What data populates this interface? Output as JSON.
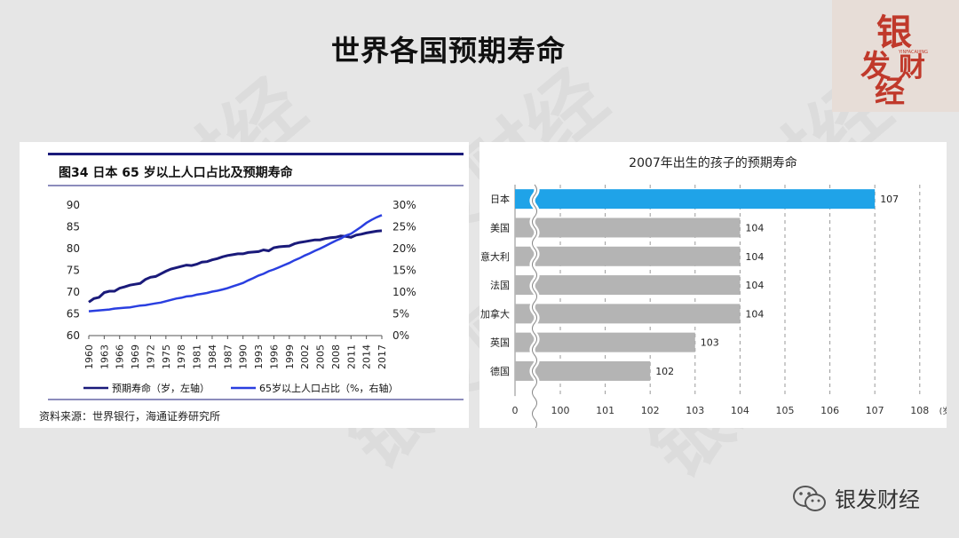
{
  "slide": {
    "title": "世界各国预期寿命"
  },
  "logo": {
    "chars": [
      "银",
      "发",
      "财",
      "经"
    ],
    "pinyin": "YINFACAIJING"
  },
  "watermark": "银发财经",
  "footer": {
    "brand": "银发财经"
  },
  "colors": {
    "dark_navy": "#1a1a7a",
    "bright_blue": "#2a3fe0",
    "highlight_bar": "#1fa3e8",
    "gray_bar": "#b4b4b4",
    "logo_red": "#c0392b"
  },
  "chart_data": [
    {
      "type": "line",
      "title": "图34 日本 65 岁以上人口占比及预期寿命",
      "source": "资料来源：世界银行，海通证券研究所",
      "x": [
        1960,
        1961,
        1962,
        1963,
        1964,
        1965,
        1966,
        1967,
        1968,
        1969,
        1970,
        1971,
        1972,
        1973,
        1974,
        1975,
        1976,
        1977,
        1978,
        1979,
        1980,
        1981,
        1982,
        1983,
        1984,
        1985,
        1986,
        1987,
        1988,
        1989,
        1990,
        1991,
        1992,
        1993,
        1994,
        1995,
        1996,
        1997,
        1998,
        1999,
        2000,
        2001,
        2002,
        2003,
        2004,
        2005,
        2006,
        2007,
        2008,
        2009,
        2010,
        2011,
        2012,
        2013,
        2014,
        2015,
        2016,
        2017
      ],
      "xticks": [
        "1960",
        "1963",
        "1966",
        "1969",
        "1972",
        "1975",
        "1978",
        "1981",
        "1984",
        "1987",
        "1990",
        "1993",
        "1996",
        "1999",
        "2002",
        "2005",
        "2008",
        "2011",
        "2014",
        "2017"
      ],
      "yleft_ticks": [
        "60",
        "65",
        "70",
        "75",
        "80",
        "85",
        "90"
      ],
      "yleft_lim": [
        60,
        90
      ],
      "yright_ticks": [
        "0%",
        "5%",
        "10%",
        "15%",
        "20%",
        "25%",
        "30%"
      ],
      "yright_lim": [
        0,
        30
      ],
      "series": [
        {
          "name": "预期寿命（岁，左轴）",
          "axis": "left",
          "values": [
            67.7,
            68.5,
            68.8,
            69.9,
            70.2,
            70.2,
            70.9,
            71.2,
            71.6,
            71.8,
            72.0,
            72.9,
            73.4,
            73.6,
            74.2,
            74.8,
            75.3,
            75.6,
            75.9,
            76.2,
            76.1,
            76.4,
            76.9,
            77.0,
            77.4,
            77.7,
            78.1,
            78.4,
            78.6,
            78.8,
            78.8,
            79.1,
            79.2,
            79.3,
            79.7,
            79.5,
            80.2,
            80.4,
            80.5,
            80.6,
            81.1,
            81.4,
            81.6,
            81.8,
            82.0,
            82.0,
            82.3,
            82.5,
            82.6,
            82.9,
            82.8,
            82.6,
            83.1,
            83.3,
            83.6,
            83.8,
            84.0,
            84.1
          ]
        },
        {
          "name": "65岁以上人口占比（%，右轴）",
          "axis": "right",
          "values": [
            5.6,
            5.7,
            5.8,
            5.9,
            6.0,
            6.2,
            6.3,
            6.4,
            6.5,
            6.7,
            6.9,
            7.0,
            7.2,
            7.4,
            7.6,
            7.9,
            8.2,
            8.5,
            8.7,
            9.0,
            9.1,
            9.4,
            9.6,
            9.8,
            10.1,
            10.3,
            10.6,
            10.9,
            11.3,
            11.7,
            12.1,
            12.7,
            13.2,
            13.8,
            14.2,
            14.8,
            15.2,
            15.7,
            16.2,
            16.7,
            17.3,
            17.8,
            18.4,
            18.9,
            19.5,
            20.0,
            20.6,
            21.2,
            21.8,
            22.3,
            23.0,
            23.4,
            24.2,
            25.0,
            25.9,
            26.6,
            27.2,
            27.7
          ]
        }
      ]
    },
    {
      "type": "bar",
      "orientation": "horizontal",
      "title": "2007年出生的孩子的预期寿命",
      "categories": [
        "日本",
        "美国",
        "意大利",
        "法国",
        "加拿大",
        "英国",
        "德国"
      ],
      "values": [
        107,
        104,
        104,
        104,
        104,
        103,
        102
      ],
      "labels": [
        "107",
        "104",
        "104",
        "104",
        "104",
        "103",
        "102"
      ],
      "xticks": [
        "0",
        "100",
        "101",
        "102",
        "103",
        "104",
        "105",
        "106",
        "107",
        "108"
      ],
      "xunit": "(岁)",
      "axis_break": true,
      "highlight": "日本"
    }
  ]
}
